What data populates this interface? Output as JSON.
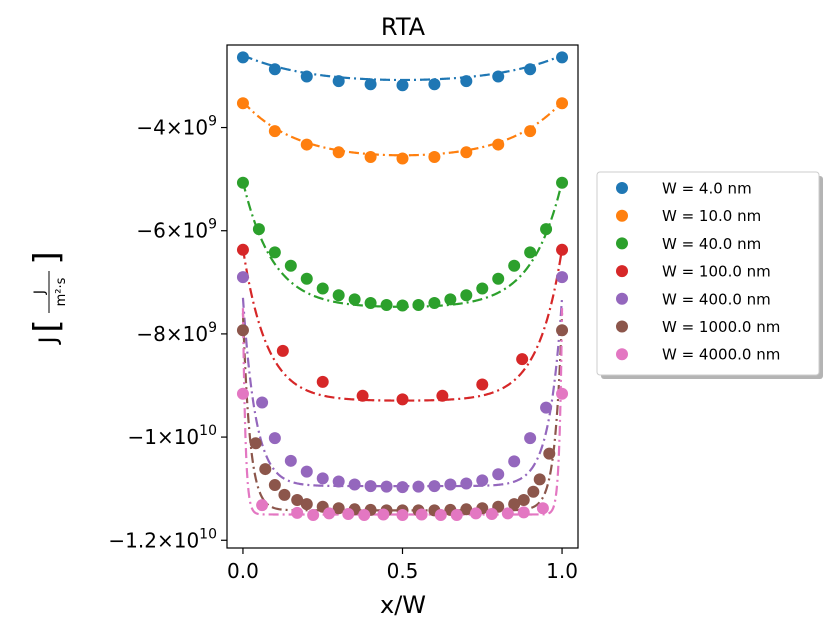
{
  "chart_data": {
    "type": "line",
    "title": "RTA",
    "xlabel": "x/W",
    "ylabel": "J",
    "ylabel_unit_numerator": "J",
    "ylabel_unit_denominator": "m²·s",
    "xlim": [
      -0.05,
      1.05
    ],
    "ylim": [
      -12150000000.0,
      -2400000000.0
    ],
    "x_ticks": [
      0.0,
      0.5,
      1.0
    ],
    "x_tick_labels": [
      "0.0",
      "0.5",
      "1.0"
    ],
    "y_ticks": [
      -4000000000.0,
      -6000000000.0,
      -8000000000.0,
      -10000000000.0,
      -12000000000.0
    ],
    "y_tick_labels": [
      {
        "mantissa": "−4×10",
        "exp": "9"
      },
      {
        "mantissa": "−6×10",
        "exp": "9"
      },
      {
        "mantissa": "−8×10",
        "exp": "9"
      },
      {
        "mantissa": "−1×10",
        "exp": "10"
      },
      {
        "mantissa": "−1.2×10",
        "exp": "10"
      }
    ],
    "legend_position": "outside-right",
    "series": [
      {
        "name": "W = 4.0 nm",
        "color": "#1f77b4",
        "x": [
          0.0,
          0.1,
          0.2,
          0.3,
          0.4,
          0.5,
          0.6,
          0.7,
          0.8,
          0.9,
          1.0
        ],
        "y": [
          -2640000000.0,
          -2870000000.0,
          -3010000000.0,
          -3100000000.0,
          -3160000000.0,
          -3180000000.0,
          -3160000000.0,
          -3100000000.0,
          -3010000000.0,
          -2870000000.0,
          -2640000000.0
        ],
        "fit": {
          "bulk": -3200000000.0,
          "edge": -2600000000.0,
          "lambda": 0.22
        }
      },
      {
        "name": "W = 10.0 nm",
        "color": "#ff7f0e",
        "x": [
          0.0,
          0.1,
          0.2,
          0.3,
          0.4,
          0.5,
          0.6,
          0.7,
          0.8,
          0.9,
          1.0
        ],
        "y": [
          -3530000000.0,
          -4070000000.0,
          -4330000000.0,
          -4480000000.0,
          -4570000000.0,
          -4600000000.0,
          -4570000000.0,
          -4480000000.0,
          -4330000000.0,
          -4070000000.0,
          -3530000000.0
        ],
        "fit": {
          "bulk": -4660000000.0,
          "edge": -3500000000.0,
          "lambda": 0.17
        }
      },
      {
        "name": "W = 40.0 nm",
        "color": "#2ca02c",
        "x": [
          0.0,
          0.05,
          0.1,
          0.15,
          0.2,
          0.25,
          0.3,
          0.35,
          0.4,
          0.45,
          0.5,
          0.55,
          0.6,
          0.65,
          0.7,
          0.75,
          0.8,
          0.85,
          0.9,
          0.95,
          1.0
        ],
        "y": [
          -5070000000.0,
          -5970000000.0,
          -6420000000.0,
          -6680000000.0,
          -6930000000.0,
          -7120000000.0,
          -7250000000.0,
          -7330000000.0,
          -7400000000.0,
          -7440000000.0,
          -7450000000.0,
          -7440000000.0,
          -7400000000.0,
          -7330000000.0,
          -7250000000.0,
          -7120000000.0,
          -6930000000.0,
          -6680000000.0,
          -6420000000.0,
          -5970000000.0,
          -5070000000.0
        ],
        "fit": {
          "bulk": -7500000000.0,
          "edge": -5050000000.0,
          "lambda": 0.095
        }
      },
      {
        "name": "W = 100.0 nm",
        "color": "#d62728",
        "x": [
          0.0,
          0.125,
          0.25,
          0.375,
          0.5,
          0.625,
          0.75,
          0.875,
          1.0
        ],
        "y": [
          -6370000000.0,
          -8330000000.0,
          -8930000000.0,
          -9200000000.0,
          -9270000000.0,
          -9200000000.0,
          -8980000000.0,
          -8490000000.0,
          -6370000000.0
        ],
        "fit": {
          "bulk": -9300000000.0,
          "edge": -6350000000.0,
          "lambda": 0.075
        }
      },
      {
        "name": "W = 400.0 nm",
        "color": "#9467bd",
        "x": [
          0.0,
          0.06,
          0.1,
          0.15,
          0.2,
          0.25,
          0.3,
          0.35,
          0.4,
          0.45,
          0.5,
          0.55,
          0.6,
          0.65,
          0.7,
          0.75,
          0.8,
          0.85,
          0.9,
          0.95,
          1.0
        ],
        "y": [
          -6900000000.0,
          -9330000000.0,
          -10020000000.0,
          -10460000000.0,
          -10670000000.0,
          -10800000000.0,
          -10860000000.0,
          -10920000000.0,
          -10950000000.0,
          -10960000000.0,
          -10970000000.0,
          -10960000000.0,
          -10950000000.0,
          -10920000000.0,
          -10900000000.0,
          -10840000000.0,
          -10720000000.0,
          -10470000000.0,
          -10020000000.0,
          -9430000000.0,
          -6900000000.0
        ],
        "fit": {
          "bulk": -10950000000.0,
          "edge": -7300000000.0,
          "lambda": 0.04
        }
      },
      {
        "name": "W = 1000.0 nm",
        "color": "#8c564b",
        "x": [
          0.0,
          0.04,
          0.07,
          0.1,
          0.13,
          0.17,
          0.2,
          0.25,
          0.3,
          0.35,
          0.4,
          0.45,
          0.5,
          0.55,
          0.6,
          0.65,
          0.7,
          0.75,
          0.8,
          0.85,
          0.88,
          0.91,
          0.93,
          0.96,
          1.0
        ],
        "y": [
          -7930000000.0,
          -10120000000.0,
          -10620000000.0,
          -10930000000.0,
          -11120000000.0,
          -11220000000.0,
          -11300000000.0,
          -11350000000.0,
          -11380000000.0,
          -11400000000.0,
          -11410000000.0,
          -11420000000.0,
          -11420000000.0,
          -11420000000.0,
          -11420000000.0,
          -11410000000.0,
          -11400000000.0,
          -11380000000.0,
          -11350000000.0,
          -11300000000.0,
          -11220000000.0,
          -11060000000.0,
          -10820000000.0,
          -10320000000.0,
          -7930000000.0
        ],
        "fit": {
          "bulk": -11420000000.0,
          "edge": -7600000000.0,
          "lambda": 0.022
        }
      },
      {
        "name": "W = 4000.0 nm",
        "color": "#e377c2",
        "x": [
          0.0,
          0.06,
          0.17,
          0.22,
          0.27,
          0.33,
          0.38,
          0.44,
          0.5,
          0.56,
          0.62,
          0.67,
          0.73,
          0.78,
          0.83,
          0.88,
          0.94,
          1.0
        ],
        "y": [
          -9160000000.0,
          -11320000000.0,
          -11470000000.0,
          -11510000000.0,
          -11480000000.0,
          -11490000000.0,
          -11510000000.0,
          -11500000000.0,
          -11510000000.0,
          -11500000000.0,
          -11510000000.0,
          -11510000000.0,
          -11480000000.0,
          -11490000000.0,
          -11480000000.0,
          -11460000000.0,
          -11380000000.0,
          -9160000000.0
        ],
        "fit": {
          "bulk": -11500000000.0,
          "edge": -7500000000.0,
          "lambda": 0.008
        }
      }
    ]
  }
}
